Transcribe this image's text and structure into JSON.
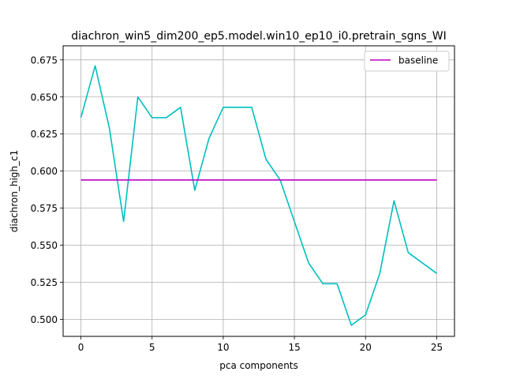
{
  "chart_data": {
    "type": "line",
    "title": "diachron_win5_dim200_ep5.model.win10_ep10_i0.pretrain_sgns_WI",
    "xlabel": "pca components",
    "ylabel": "diachron_high_c1",
    "xlim": [
      -1.25,
      26.25
    ],
    "ylim": [
      0.4885,
      0.6845
    ],
    "xticks": [
      0,
      5,
      10,
      15,
      20,
      25
    ],
    "yticks": [
      0.5,
      0.525,
      0.55,
      0.575,
      0.6,
      0.625,
      0.65,
      0.675
    ],
    "ytick_labels": [
      "0.500",
      "0.525",
      "0.550",
      "0.575",
      "0.600",
      "0.625",
      "0.650",
      "0.675"
    ],
    "grid": true,
    "legend_position": "top-right",
    "series": [
      {
        "name": "",
        "color": "#00bfbf",
        "x": [
          0,
          1,
          2,
          3,
          4,
          5,
          6,
          7,
          8,
          9,
          10,
          11,
          12,
          13,
          14,
          15,
          16,
          17,
          18,
          19,
          20,
          21,
          22,
          23,
          24,
          25
        ],
        "y": [
          0.636,
          0.671,
          0.629,
          0.566,
          0.65,
          0.636,
          0.636,
          0.643,
          0.587,
          0.622,
          0.643,
          0.643,
          0.643,
          0.608,
          0.594,
          0.566,
          0.538,
          0.524,
          0.524,
          0.496,
          0.503,
          0.531,
          0.58,
          0.545,
          0.538,
          0.531
        ]
      },
      {
        "name": "baseline",
        "color": "#bf00bf",
        "x": [
          0,
          25
        ],
        "y": [
          0.594,
          0.594
        ]
      }
    ]
  }
}
